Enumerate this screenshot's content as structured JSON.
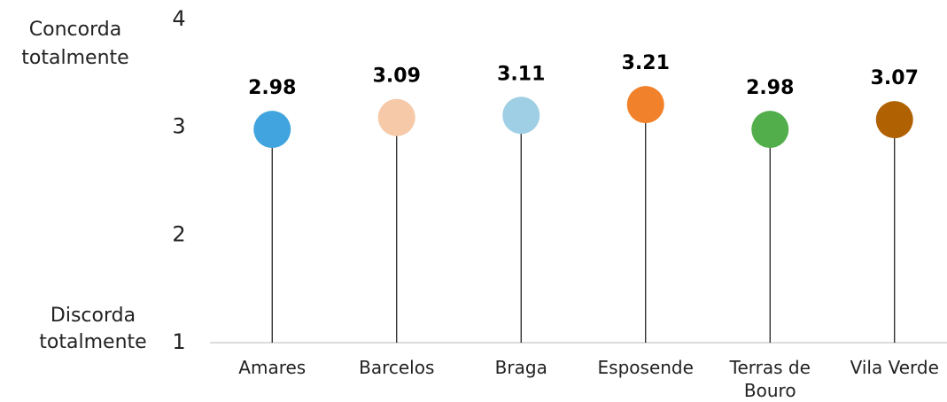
{
  "chart_data": {
    "type": "lollipop",
    "categories": [
      "Amares",
      "Barcelos",
      "Braga",
      "Esposende",
      "Terras de Bouro",
      "Vila Verde"
    ],
    "values": [
      2.98,
      3.09,
      3.11,
      3.21,
      2.98,
      3.07
    ],
    "colors": [
      "#41a4df",
      "#f6c9a9",
      "#9fcfe4",
      "#f1812a",
      "#51ae4b",
      "#b06202"
    ],
    "ylim": [
      1,
      4
    ],
    "yticks": [
      1,
      2,
      3,
      4
    ],
    "y_top_label": "Concorda totalmente",
    "y_bottom_label": "Discorda totalmente",
    "grid": false
  }
}
